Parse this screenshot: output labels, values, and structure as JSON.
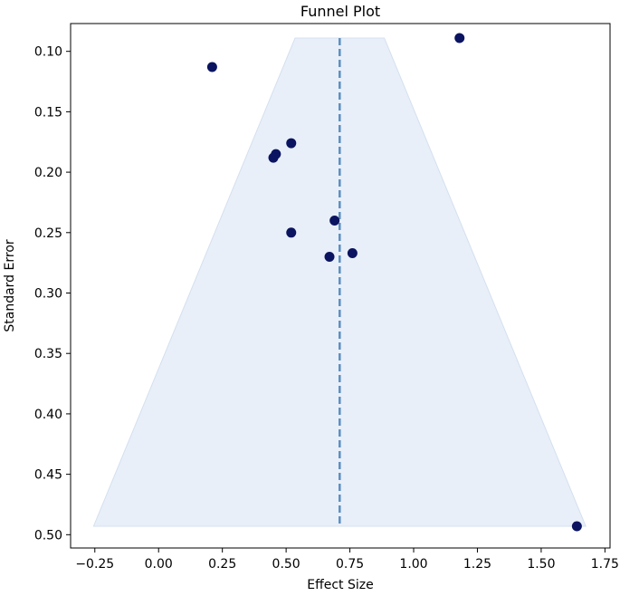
{
  "chart_data": {
    "type": "scatter",
    "title": "Funnel Plot",
    "xlabel": "Effect Size",
    "ylabel": "Standard Error",
    "xlim": [
      -0.345,
      1.77
    ],
    "ylim": [
      0.511,
      0.077
    ],
    "y_inverted": true,
    "grid": false,
    "x_ticks": [
      -0.25,
      0.0,
      0.25,
      0.5,
      0.75,
      1.0,
      1.25,
      1.5,
      1.75
    ],
    "x_tick_labels": [
      "−0.25",
      "0.00",
      "0.25",
      "0.50",
      "0.75",
      "1.00",
      "1.25",
      "1.50",
      "1.75"
    ],
    "y_ticks": [
      0.1,
      0.15,
      0.2,
      0.25,
      0.3,
      0.35,
      0.4,
      0.45,
      0.5
    ],
    "y_tick_labels": [
      "0.10",
      "0.15",
      "0.20",
      "0.25",
      "0.30",
      "0.35",
      "0.40",
      "0.45",
      "0.50"
    ],
    "pooled_effect": 0.71,
    "funnel": {
      "top_se": 0.089,
      "bottom_se": 0.493,
      "top_x": [
        0.535,
        0.885
      ],
      "bottom_x": [
        -0.255,
        1.675
      ]
    },
    "points": [
      {
        "x": 0.21,
        "y": 0.113
      },
      {
        "x": 1.18,
        "y": 0.089
      },
      {
        "x": 0.52,
        "y": 0.176
      },
      {
        "x": 0.46,
        "y": 0.185
      },
      {
        "x": 0.45,
        "y": 0.188
      },
      {
        "x": 0.69,
        "y": 0.24
      },
      {
        "x": 0.52,
        "y": 0.25
      },
      {
        "x": 0.76,
        "y": 0.267
      },
      {
        "x": 0.67,
        "y": 0.27
      },
      {
        "x": 1.64,
        "y": 0.493
      }
    ],
    "colors": {
      "points": "#0b1460",
      "funnel_fill": "#e8eff8",
      "funnel_edge": "#d4e0ef",
      "pooled_line": "#5b8fc0"
    }
  }
}
